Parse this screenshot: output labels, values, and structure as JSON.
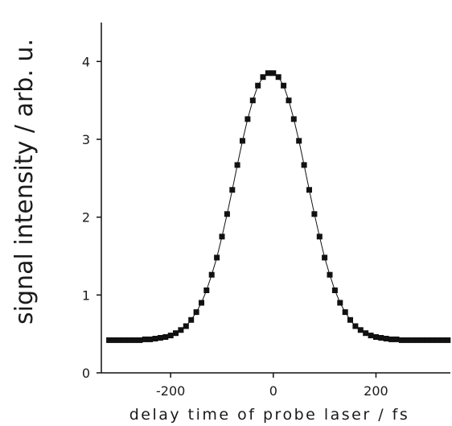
{
  "chart_data": {
    "type": "scatter",
    "xlabel": "delay time of probe laser / fs",
    "ylabel": "signal intensity / arb. u.",
    "xlim": [
      -335,
      345
    ],
    "ylim": [
      0,
      4.5
    ],
    "x_ticks": [
      -200,
      0,
      200
    ],
    "x_tick_labels": [
      "-200",
      "0",
      "200"
    ],
    "y_ticks": [
      0,
      1,
      2,
      3,
      4
    ],
    "y_tick_labels": [
      "0",
      "1",
      "2",
      "3",
      "4"
    ],
    "grid": false,
    "frame": "left-bottom",
    "series": [
      {
        "marker": "square",
        "line": "thin-solid",
        "color": "#111111",
        "x": [
          -320,
          -310,
          -300,
          -290,
          -280,
          -270,
          -260,
          -250,
          -240,
          -230,
          -220,
          -210,
          -200,
          -190,
          -180,
          -170,
          -160,
          -150,
          -140,
          -130,
          -120,
          -110,
          -100,
          -90,
          -80,
          -70,
          -60,
          -50,
          -40,
          -30,
          -20,
          -10,
          0,
          10,
          20,
          30,
          40,
          50,
          60,
          70,
          80,
          90,
          100,
          110,
          120,
          130,
          140,
          150,
          160,
          170,
          180,
          190,
          200,
          210,
          220,
          230,
          240,
          250,
          260,
          270,
          280,
          290,
          300,
          310,
          320,
          330,
          340
        ],
        "y": [
          0.42,
          0.42,
          0.42,
          0.42,
          0.42,
          0.42,
          0.42,
          0.43,
          0.43,
          0.44,
          0.45,
          0.46,
          0.48,
          0.51,
          0.55,
          0.6,
          0.68,
          0.78,
          0.9,
          1.06,
          1.26,
          1.48,
          1.75,
          2.04,
          2.35,
          2.67,
          2.98,
          3.26,
          3.5,
          3.69,
          3.8,
          3.85,
          3.85,
          3.8,
          3.69,
          3.5,
          3.26,
          2.98,
          2.67,
          2.35,
          2.04,
          1.75,
          1.48,
          1.26,
          1.06,
          0.9,
          0.78,
          0.68,
          0.6,
          0.55,
          0.51,
          0.48,
          0.46,
          0.45,
          0.44,
          0.43,
          0.43,
          0.42,
          0.42,
          0.42,
          0.42,
          0.42,
          0.42,
          0.42,
          0.42,
          0.42,
          0.42
        ]
      }
    ]
  }
}
